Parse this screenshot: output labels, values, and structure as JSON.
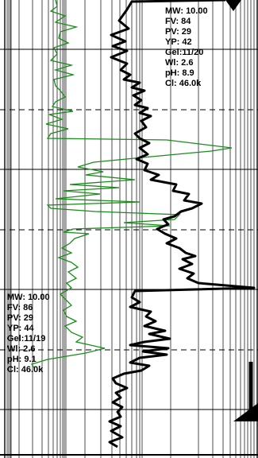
{
  "colors": {
    "gamma_trace": "#1a8c1a",
    "resistivity_trace": "#000000",
    "grid": "#000000",
    "background": "#ffffff"
  },
  "mud_reports": [
    {
      "mw": "MW: 10.00",
      "fv": "FV: 84",
      "pv": "PV: 29",
      "yp": "YP: 42",
      "gel": "Gel:11/20",
      "wl": "Wl: 2.6",
      "ph": "pH: 8.9",
      "cl": "Cl: 46.0k"
    },
    {
      "mw": "MW: 10.00",
      "fv": "FV: 86",
      "pv": "PV: 29",
      "yp": "YP: 44",
      "gel": "Gel:11/19",
      "wl": "Wl: 2.6",
      "ph": "pH: 9.1",
      "cl": "Cl: 46.0k"
    }
  ]
}
